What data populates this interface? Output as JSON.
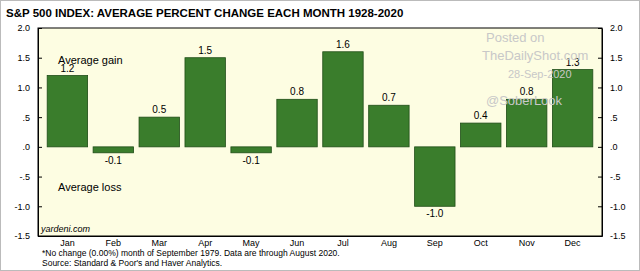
{
  "chart_data": {
    "type": "bar",
    "title": "S&P 500 INDEX: AVERAGE PERCENT CHANGE EACH MONTH 1928-2020",
    "categories": [
      "Jan",
      "Feb",
      "Mar",
      "Apr",
      "May",
      "Jun",
      "Jul",
      "Aug",
      "Sep",
      "Oct",
      "Nov",
      "Dec"
    ],
    "values": [
      1.2,
      -0.1,
      0.5,
      1.5,
      -0.1,
      0.8,
      1.6,
      0.7,
      -1.0,
      0.4,
      0.8,
      1.3
    ],
    "value_labels": [
      "1.2",
      "-0.1",
      "0.5",
      "1.5",
      "-0.1",
      "0.8",
      "1.6",
      "0.7",
      "-1.0",
      "0.4",
      "0.8",
      "1.3"
    ],
    "color": "#3a7d2c",
    "ylim": [
      -1.5,
      2.0
    ],
    "yticks": [
      {
        "value": -1.5,
        "label": "-1.5"
      },
      {
        "value": -1.0,
        "label": "-1.0"
      },
      {
        "value": -0.5,
        "label": "-.5"
      },
      {
        "value": 0,
        "label": ".0"
      },
      {
        "value": 0.5,
        "label": ".5"
      },
      {
        "value": 1.0,
        "label": "1.0"
      },
      {
        "value": 1.5,
        "label": "1.5"
      },
      {
        "value": 2.0,
        "label": "2.0"
      }
    ],
    "grid": false,
    "data_labels": true,
    "annotations": [
      "Average gain",
      "Average loss",
      "yardeni.com",
      "Posted on",
      "TheDailyShot.com",
      "28-Sep-2020",
      "@SoberLook"
    ],
    "footnotes": [
      "*No change (0.00%) month of September 1979. Data are through August 2020.",
      "Source: Standard & Poor's and Haver Analytics."
    ]
  }
}
